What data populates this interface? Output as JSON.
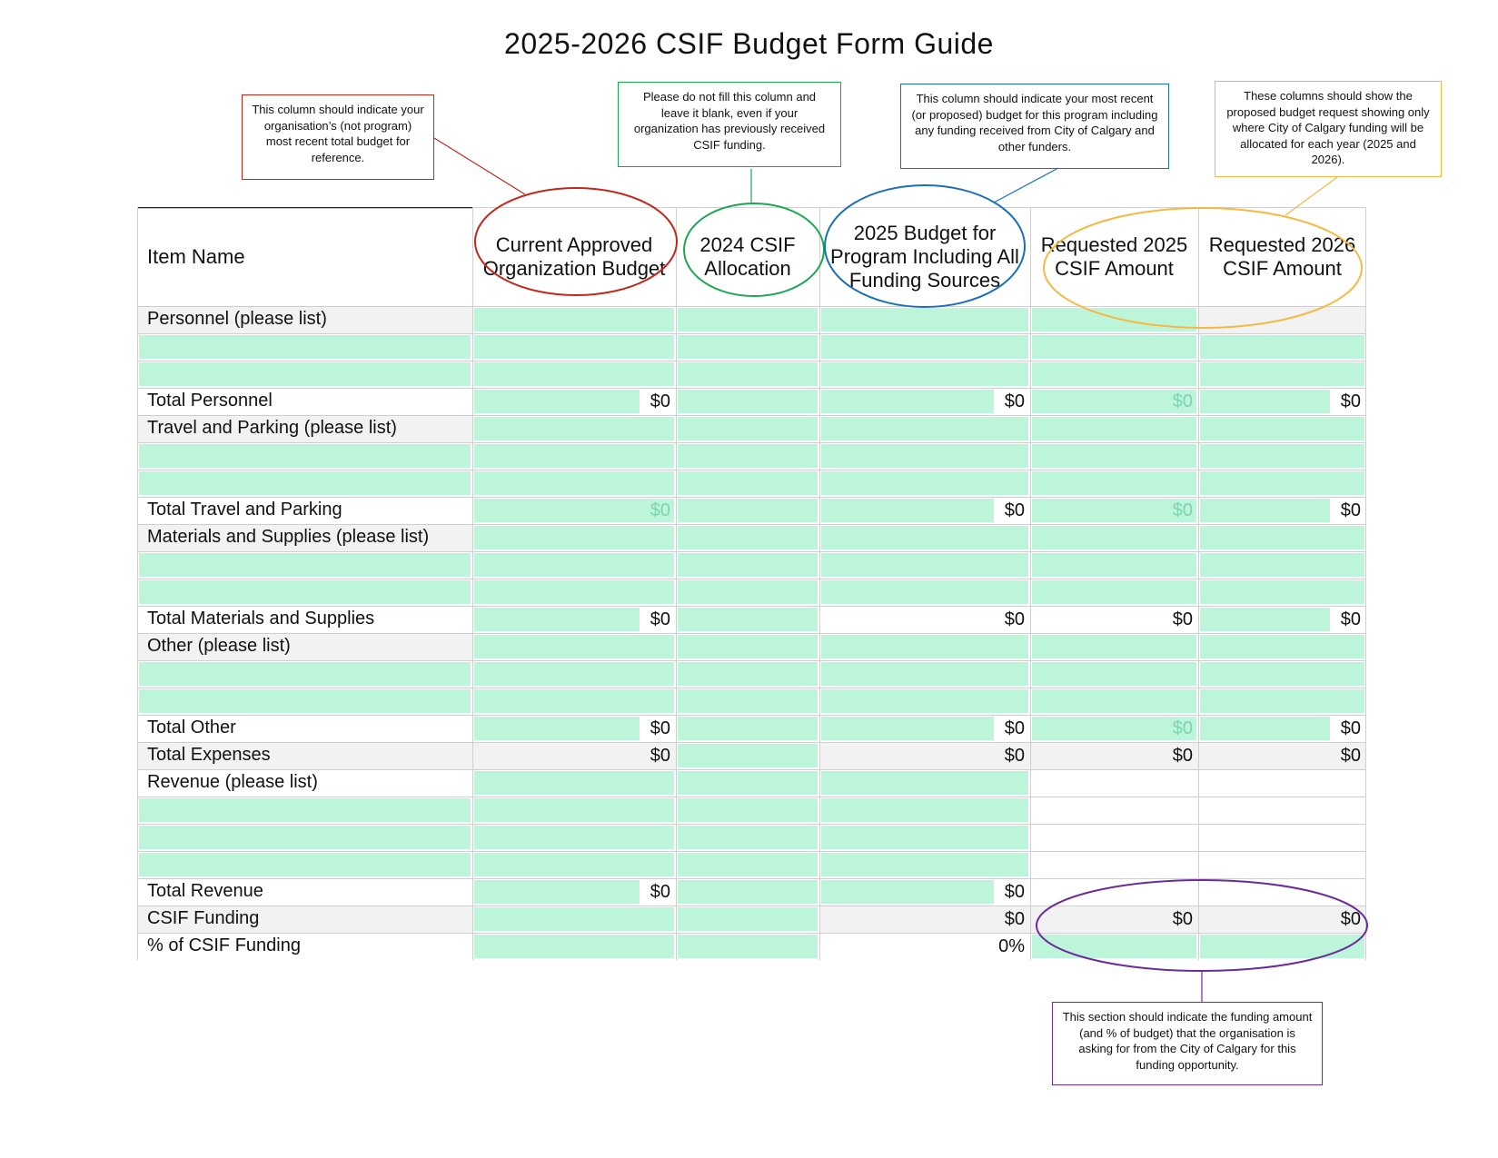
{
  "title": "2025-2026 CSIF Budget Form Guide",
  "notes": {
    "org_budget": "This column should indicate your organisation’s (not program) most recent total budget for reference.",
    "allocation": "Please do not fill this column and leave it blank, even if your organization has previously received CSIF funding.",
    "program_budget": "This column should indicate your most recent (or proposed) budget for this program including any funding received from City of Calgary and other funders.",
    "requested": "These columns should show the proposed budget request showing only where City of Calgary funding will be allocated for each year (2025 and 2026).",
    "funding_section": "This section should indicate the funding amount (and % of budget) that the organisation is asking for from the City of Calgary for this funding opportunity."
  },
  "columns": [
    "Item Name",
    "Current Approved Organization Budget",
    "2024 CSIF Allocation",
    "2025 Budget for Program Including All Funding Sources",
    "Requested 2025 CSIF Amount",
    "Requested 2026 CSIF Amount"
  ],
  "rows": [
    {
      "label": "Personnel (please list)",
      "bg": "#f2f2f2",
      "c": [
        {
          "f": 1
        },
        {
          "f": 1
        },
        {
          "f": 1
        },
        {
          "f": 1
        },
        {
          "f": 0
        }
      ]
    },
    {
      "label": "",
      "bg": "#bdf5da",
      "c": [
        {
          "f": 1
        },
        {
          "f": 1
        },
        {
          "f": 1
        },
        {
          "f": 1
        },
        {
          "f": 1
        }
      ]
    },
    {
      "label": "",
      "bg": "#bdf5da",
      "c": [
        {
          "f": 1
        },
        {
          "f": 1
        },
        {
          "f": 1
        },
        {
          "f": 1
        },
        {
          "f": 1
        }
      ]
    },
    {
      "label": "Total Personnel",
      "bg": "#ffffff",
      "c": [
        {
          "f": 1,
          "v": "$0",
          "chip": 1
        },
        {
          "f": 1
        },
        {
          "f": 1,
          "v": "$0",
          "chip": 1
        },
        {
          "f": 1,
          "v": "$0",
          "m": 1
        },
        {
          "f": 1,
          "v": "$0",
          "chip": 1
        }
      ]
    },
    {
      "label": "Travel and Parking (please list)",
      "bg": "#f2f2f2",
      "c": [
        {
          "f": 1
        },
        {
          "f": 1
        },
        {
          "f": 1
        },
        {
          "f": 1
        },
        {
          "f": 1
        }
      ]
    },
    {
      "label": "",
      "bg": "#bdf5da",
      "c": [
        {
          "f": 1
        },
        {
          "f": 1
        },
        {
          "f": 1
        },
        {
          "f": 1
        },
        {
          "f": 1
        }
      ]
    },
    {
      "label": "",
      "bg": "#bdf5da",
      "c": [
        {
          "f": 1
        },
        {
          "f": 1
        },
        {
          "f": 1
        },
        {
          "f": 1
        },
        {
          "f": 1
        }
      ]
    },
    {
      "label": "Total Travel and Parking",
      "bg": "#ffffff",
      "c": [
        {
          "f": 1,
          "v": "$0",
          "m": 1
        },
        {
          "f": 1
        },
        {
          "f": 1,
          "v": "$0",
          "chip": 1
        },
        {
          "f": 1,
          "v": "$0",
          "m": 1
        },
        {
          "f": 1,
          "v": "$0",
          "chip": 1
        }
      ]
    },
    {
      "label": "Materials and Supplies (please list)",
      "bg": "#f2f2f2",
      "c": [
        {
          "f": 1
        },
        {
          "f": 1
        },
        {
          "f": 1
        },
        {
          "f": 1
        },
        {
          "f": 1
        }
      ]
    },
    {
      "label": "",
      "bg": "#bdf5da",
      "c": [
        {
          "f": 1
        },
        {
          "f": 1
        },
        {
          "f": 1
        },
        {
          "f": 1
        },
        {
          "f": 1
        }
      ]
    },
    {
      "label": "",
      "bg": "#bdf5da",
      "c": [
        {
          "f": 1
        },
        {
          "f": 1
        },
        {
          "f": 1
        },
        {
          "f": 1
        },
        {
          "f": 1
        }
      ]
    },
    {
      "label": "Total Materials and Supplies",
      "bg": "#ffffff",
      "c": [
        {
          "f": 1,
          "v": "$0",
          "chip": 1
        },
        {
          "f": 1
        },
        {
          "f": 0,
          "v": "$0"
        },
        {
          "f": 0,
          "v": "$0"
        },
        {
          "f": 1,
          "v": "$0",
          "chip": 1
        }
      ]
    },
    {
      "label": "Other (please list)",
      "bg": "#f2f2f2",
      "c": [
        {
          "f": 1
        },
        {
          "f": 1
        },
        {
          "f": 1
        },
        {
          "f": 1
        },
        {
          "f": 1
        }
      ]
    },
    {
      "label": "",
      "bg": "#bdf5da",
      "c": [
        {
          "f": 1
        },
        {
          "f": 1
        },
        {
          "f": 1
        },
        {
          "f": 1
        },
        {
          "f": 1
        }
      ]
    },
    {
      "label": "",
      "bg": "#bdf5da",
      "c": [
        {
          "f": 1
        },
        {
          "f": 1
        },
        {
          "f": 1
        },
        {
          "f": 1
        },
        {
          "f": 1
        }
      ]
    },
    {
      "label": "Total Other",
      "bg": "#ffffff",
      "c": [
        {
          "f": 1,
          "v": "$0",
          "chip": 1
        },
        {
          "f": 1
        },
        {
          "f": 1,
          "v": "$0",
          "chip": 1
        },
        {
          "f": 1,
          "v": "$0",
          "m": 1
        },
        {
          "f": 1,
          "v": "$0",
          "chip": 1
        }
      ]
    },
    {
      "label": "Total Expenses",
      "bg": "#f2f2f2",
      "c": [
        {
          "f": 0,
          "v": "$0"
        },
        {
          "f": 1
        },
        {
          "f": 0,
          "v": "$0"
        },
        {
          "f": 0,
          "v": "$0"
        },
        {
          "f": 0,
          "v": "$0"
        }
      ]
    },
    {
      "label": "Revenue (please list)",
      "bg": "#ffffff",
      "c": [
        {
          "f": 1
        },
        {
          "f": 1
        },
        {
          "f": 1
        },
        {
          "f": 2
        },
        {
          "f": 2
        }
      ]
    },
    {
      "label": "",
      "bg": "#bdf5da",
      "c": [
        {
          "f": 1
        },
        {
          "f": 1
        },
        {
          "f": 1
        },
        {
          "f": 2
        },
        {
          "f": 2
        }
      ]
    },
    {
      "label": "",
      "bg": "#bdf5da",
      "c": [
        {
          "f": 1
        },
        {
          "f": 1
        },
        {
          "f": 1
        },
        {
          "f": 2
        },
        {
          "f": 2
        }
      ]
    },
    {
      "label": "",
      "bg": "#bdf5da",
      "c": [
        {
          "f": 1
        },
        {
          "f": 1
        },
        {
          "f": 1
        },
        {
          "f": 2
        },
        {
          "f": 2
        }
      ]
    },
    {
      "label": "Total Revenue",
      "bg": "#ffffff",
      "c": [
        {
          "f": 1,
          "v": "$0",
          "chip": 1
        },
        {
          "f": 1
        },
        {
          "f": 1,
          "v": "$0",
          "chip": 1
        },
        {
          "f": 2
        },
        {
          "f": 2
        }
      ]
    },
    {
      "label": "CSIF Funding",
      "bg": "#f2f2f2",
      "c": [
        {
          "f": 1
        },
        {
          "f": 1
        },
        {
          "f": 0,
          "v": "$0"
        },
        {
          "f": 0,
          "v": "$0"
        },
        {
          "f": 0,
          "v": "$0"
        }
      ]
    },
    {
      "label": "% of CSIF Funding",
      "bg": "#ffffff",
      "c": [
        {
          "f": 1
        },
        {
          "f": 1
        },
        {
          "f": 0,
          "v": "0%"
        },
        {
          "f": 1
        },
        {
          "f": 1
        }
      ]
    }
  ],
  "colors": {
    "fill": "#bdf5da",
    "gray": "#f2f2f2",
    "red": "#c0281c",
    "green": "#1aa653",
    "blue": "#1b6fba",
    "orange": "#f5b942",
    "purple": "#6a2c9b"
  }
}
